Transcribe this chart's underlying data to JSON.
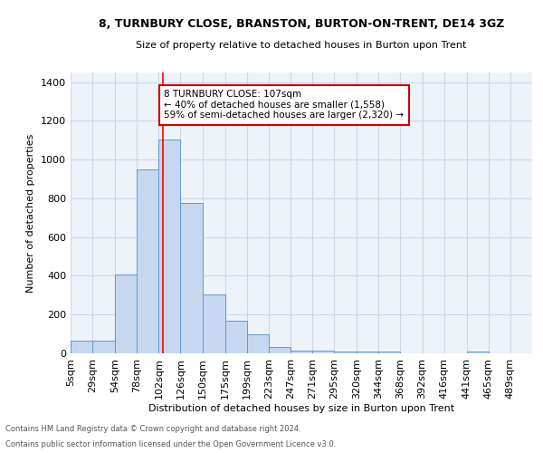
{
  "title": "8, TURNBURY CLOSE, BRANSTON, BURTON-ON-TRENT, DE14 3GZ",
  "subtitle": "Size of property relative to detached houses in Burton upon Trent",
  "xlabel": "Distribution of detached houses by size in Burton upon Trent",
  "ylabel": "Number of detached properties",
  "bar_labels": [
    "5sqm",
    "29sqm",
    "54sqm",
    "78sqm",
    "102sqm",
    "126sqm",
    "150sqm",
    "175sqm",
    "199sqm",
    "223sqm",
    "247sqm",
    "271sqm",
    "295sqm",
    "320sqm",
    "344sqm",
    "368sqm",
    "392sqm",
    "416sqm",
    "441sqm",
    "465sqm",
    "489sqm"
  ],
  "bar_heights": [
    65,
    65,
    405,
    950,
    1105,
    775,
    305,
    170,
    100,
    35,
    15,
    15,
    10,
    10,
    10,
    0,
    0,
    0,
    10,
    0,
    0
  ],
  "bar_color": "#c5d8f0",
  "bar_edge_color": "#5b9bd5",
  "grid_color": "#d0d8e8",
  "background_color": "#eef2f9",
  "red_line_x": 107,
  "bin_edges": [
    5,
    29,
    54,
    78,
    102,
    126,
    150,
    175,
    199,
    223,
    247,
    271,
    295,
    320,
    344,
    368,
    392,
    416,
    441,
    465,
    489,
    513
  ],
  "annotation_text": "8 TURNBURY CLOSE: 107sqm\n← 40% of detached houses are smaller (1,558)\n59% of semi-detached houses are larger (2,320) →",
  "annotation_box_color": "#cc0000",
  "ylim": [
    0,
    1450
  ],
  "footnote1": "Contains HM Land Registry data © Crown copyright and database right 2024.",
  "footnote2": "Contains public sector information licensed under the Open Government Licence v3.0."
}
